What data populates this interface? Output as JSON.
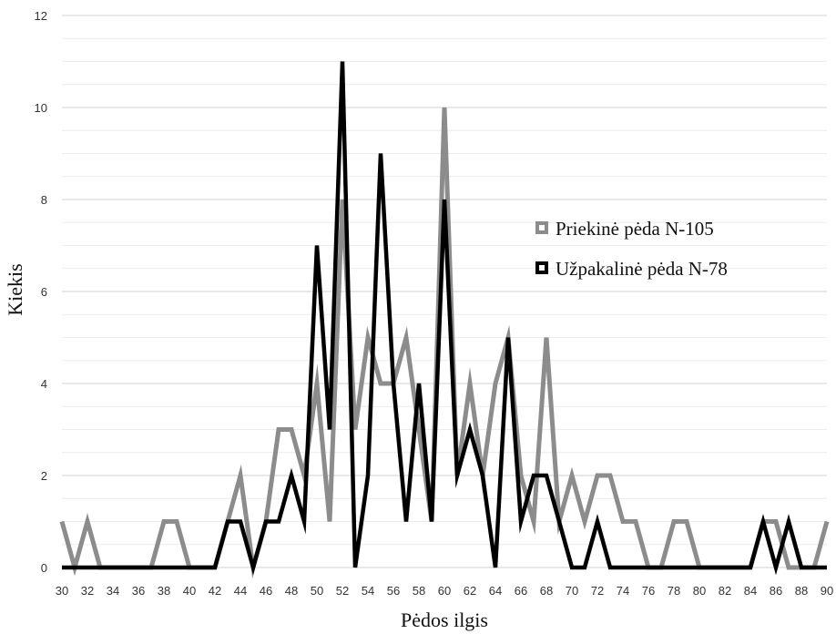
{
  "chart_data": {
    "type": "line",
    "title": "",
    "xlabel": "Pėdos ilgis",
    "ylabel": "Kiekis",
    "xlim": [
      30,
      90
    ],
    "ylim": [
      0,
      12
    ],
    "x_ticks": [
      30,
      32,
      34,
      36,
      38,
      40,
      42,
      44,
      46,
      48,
      50,
      52,
      54,
      56,
      58,
      60,
      62,
      64,
      66,
      68,
      70,
      72,
      74,
      76,
      78,
      80,
      82,
      84,
      86,
      88,
      90
    ],
    "y_ticks": [
      0,
      2,
      4,
      6,
      8,
      10,
      12
    ],
    "grid": true,
    "legend_position": "right",
    "x": [
      30,
      31,
      32,
      33,
      34,
      35,
      36,
      37,
      38,
      39,
      40,
      41,
      42,
      43,
      44,
      45,
      46,
      47,
      48,
      49,
      50,
      51,
      52,
      53,
      54,
      55,
      56,
      57,
      58,
      59,
      60,
      61,
      62,
      63,
      64,
      65,
      66,
      67,
      68,
      69,
      70,
      71,
      72,
      73,
      74,
      75,
      76,
      77,
      78,
      79,
      80,
      81,
      82,
      83,
      84,
      85,
      86,
      87,
      88,
      89,
      90
    ],
    "series": [
      {
        "name": "Priekinė pėda N-105",
        "color": "#8c8c8c",
        "values": [
          1,
          0,
          1,
          0,
          0,
          0,
          0,
          0,
          1,
          1,
          0,
          0,
          0,
          1,
          2,
          0,
          1,
          3,
          3,
          2,
          4,
          1,
          8,
          3,
          5,
          4,
          4,
          5,
          3,
          1,
          10,
          2,
          4,
          2,
          4,
          5,
          2,
          1,
          5,
          1,
          2,
          1,
          2,
          2,
          1,
          1,
          0,
          0,
          1,
          1,
          0,
          0,
          0,
          0,
          0,
          1,
          1,
          0,
          0,
          0,
          1
        ]
      },
      {
        "name": "Užpakalinė pėda N-78",
        "color": "#000000",
        "values": [
          0,
          0,
          0,
          0,
          0,
          0,
          0,
          0,
          0,
          0,
          0,
          0,
          0,
          1,
          1,
          0,
          1,
          1,
          2,
          1,
          7,
          3,
          11,
          0,
          2,
          9,
          4,
          1,
          4,
          1,
          8,
          2,
          3,
          2,
          0,
          5,
          1,
          2,
          2,
          1,
          0,
          0,
          1,
          0,
          0,
          0,
          0,
          0,
          0,
          0,
          0,
          0,
          0,
          0,
          0,
          1,
          0,
          1,
          0,
          0,
          0
        ]
      }
    ]
  }
}
